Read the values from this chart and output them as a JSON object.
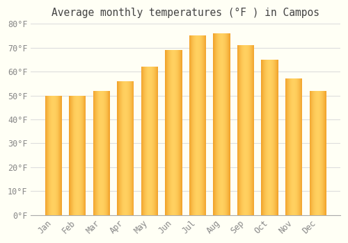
{
  "title": "Average monthly temperatures (°F ) in Campos",
  "months": [
    "Jan",
    "Feb",
    "Mar",
    "Apr",
    "May",
    "Jun",
    "Jul",
    "Aug",
    "Sep",
    "Oct",
    "Nov",
    "Dec"
  ],
  "values": [
    50,
    50,
    52,
    56,
    62,
    69,
    75,
    76,
    71,
    65,
    57,
    52
  ],
  "bar_color_edge": "#E8860A",
  "bar_color_center": "#FFD060",
  "bar_color_mid": "#FFAA20",
  "ylim": [
    0,
    80
  ],
  "yticks": [
    0,
    10,
    20,
    30,
    40,
    50,
    60,
    70,
    80
  ],
  "ytick_labels": [
    "0°F",
    "10°F",
    "20°F",
    "30°F",
    "40°F",
    "50°F",
    "60°F",
    "70°F",
    "80°F"
  ],
  "background_color": "#FFFFF5",
  "grid_color": "#DDDDDD",
  "title_fontsize": 10.5,
  "tick_fontsize": 8.5
}
